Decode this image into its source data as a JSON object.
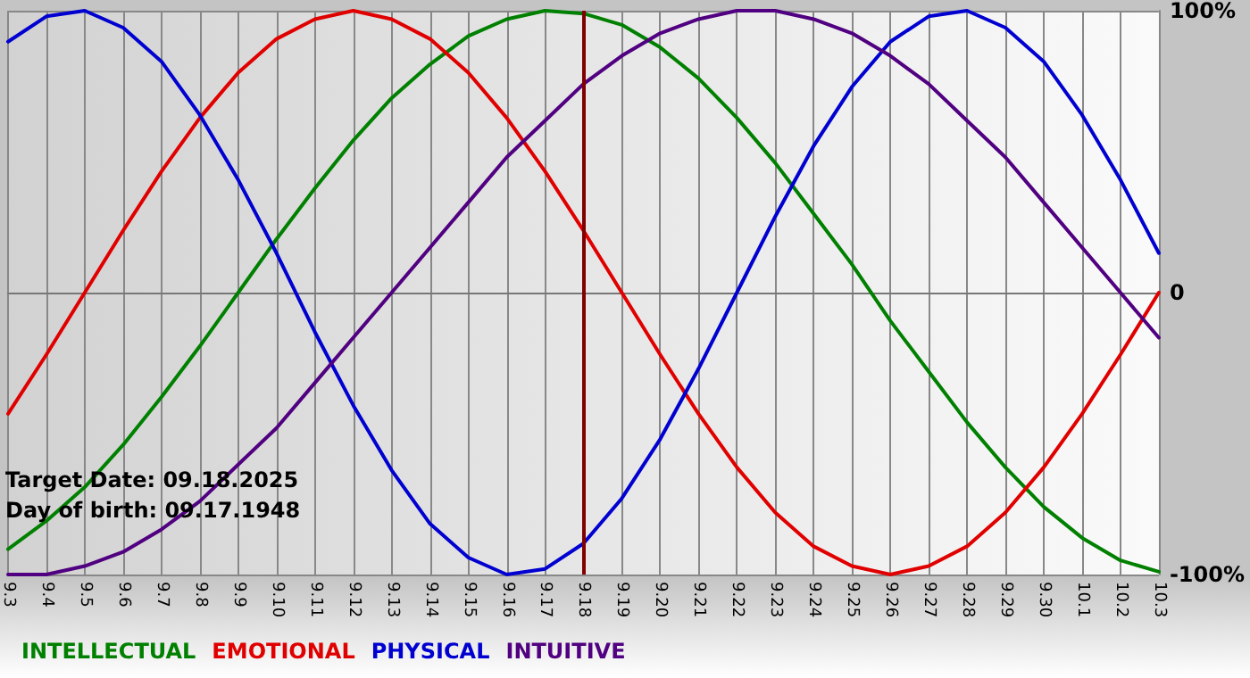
{
  "chart_data": {
    "type": "line",
    "categories": [
      "9.3",
      "9.4",
      "9.5",
      "9.6",
      "9.7",
      "9.8",
      "9.9",
      "9.10",
      "9.11",
      "9.12",
      "9.13",
      "9.14",
      "9.15",
      "9.16",
      "9.17",
      "9.18",
      "9.19",
      "9.20",
      "9.21",
      "9.22",
      "9.23",
      "9.24",
      "9.25",
      "9.26",
      "9.27",
      "9.28",
      "9.29",
      "9.30",
      "10.1",
      "10.2",
      "10.3"
    ],
    "series": [
      {
        "name": "INTELLECTUAL",
        "color": "#008000",
        "values": [
          -91,
          -81,
          -69,
          -54,
          -37,
          -19,
          0,
          19,
          37,
          54,
          69,
          81,
          91,
          97,
          100,
          99,
          95,
          87,
          76,
          62,
          46,
          28,
          10,
          -10,
          -28,
          -46,
          -62,
          -76,
          -87,
          -95,
          -99
        ]
      },
      {
        "name": "EMOTIONAL",
        "color": "#e00000",
        "values": [
          -43,
          -22,
          0,
          22,
          43,
          62,
          78,
          90,
          97,
          100,
          97,
          90,
          78,
          62,
          43,
          22,
          0,
          -22,
          -43,
          -62,
          -78,
          -90,
          -97,
          -100,
          -97,
          -90,
          -78,
          -62,
          -43,
          -22,
          0
        ]
      },
      {
        "name": "PHYSICAL",
        "color": "#0000d0",
        "values": [
          89,
          98,
          100,
          94,
          82,
          63,
          40,
          14,
          -14,
          -40,
          -63,
          -82,
          -94,
          -100,
          -98,
          -89,
          -73,
          -52,
          -27,
          0,
          27,
          52,
          73,
          89,
          98,
          100,
          94,
          82,
          63,
          40,
          14
        ]
      },
      {
        "name": "INTUITIVE",
        "color": "#500080",
        "values": [
          -100,
          -100,
          -97,
          -92,
          -84,
          -74,
          -61,
          -48,
          -32,
          -16,
          0,
          16,
          32,
          48,
          61,
          74,
          84,
          92,
          97,
          100,
          100,
          97,
          92,
          84,
          74,
          61,
          48,
          32,
          16,
          0,
          -16
        ]
      }
    ],
    "ylim": [
      -100,
      100
    ],
    "yticks": [
      {
        "value": -100,
        "label": "-100%"
      },
      {
        "value": 0,
        "label": "0"
      },
      {
        "value": 100,
        "label": "100%"
      }
    ],
    "ref_lines": [
      {
        "axis": "x",
        "value": "9.18",
        "color": "#800000"
      }
    ],
    "annotations": [
      "Target Date: 09.18.2025",
      "Day of birth: 09.17.1948"
    ],
    "grid": true,
    "legend": "bottom left",
    "marker": "none",
    "line_style": "solid"
  }
}
